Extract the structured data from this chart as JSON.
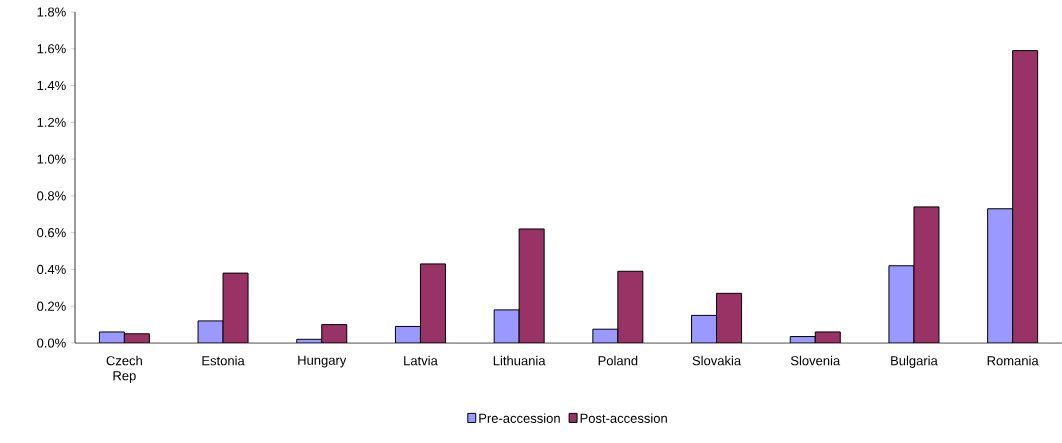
{
  "chart_data": {
    "type": "bar",
    "categories": [
      "Czech Rep",
      "Estonia",
      "Hungary",
      "Latvia",
      "Lithuania",
      "Poland",
      "Slovakia",
      "Slovenia",
      "Bulgaria",
      "Romania"
    ],
    "series": [
      {
        "name": "Pre-accession",
        "color": "#9999ff",
        "values": [
          0.06,
          0.12,
          0.02,
          0.09,
          0.18,
          0.075,
          0.15,
          0.035,
          0.42,
          0.73
        ]
      },
      {
        "name": "Post-accession",
        "color": "#993366",
        "values": [
          0.05,
          0.38,
          0.1,
          0.43,
          0.62,
          0.39,
          0.27,
          0.06,
          0.74,
          1.59
        ]
      }
    ],
    "ylim": [
      0,
      1.8
    ],
    "yticks": [
      {
        "value": 0,
        "label": "0.0%"
      },
      {
        "value": 0.2,
        "label": "0.2%"
      },
      {
        "value": 0.4,
        "label": "0.4%"
      },
      {
        "value": 0.6,
        "label": "0.6%"
      },
      {
        "value": 0.8,
        "label": "0.8%"
      },
      {
        "value": 1.0,
        "label": "1.0%"
      },
      {
        "value": 1.2,
        "label": "1.2%"
      },
      {
        "value": 1.4,
        "label": "1.4%"
      },
      {
        "value": 1.6,
        "label": "1.6%"
      },
      {
        "value": 1.8,
        "label": "1.8%"
      }
    ],
    "legend": "bottom",
    "grid": false
  }
}
